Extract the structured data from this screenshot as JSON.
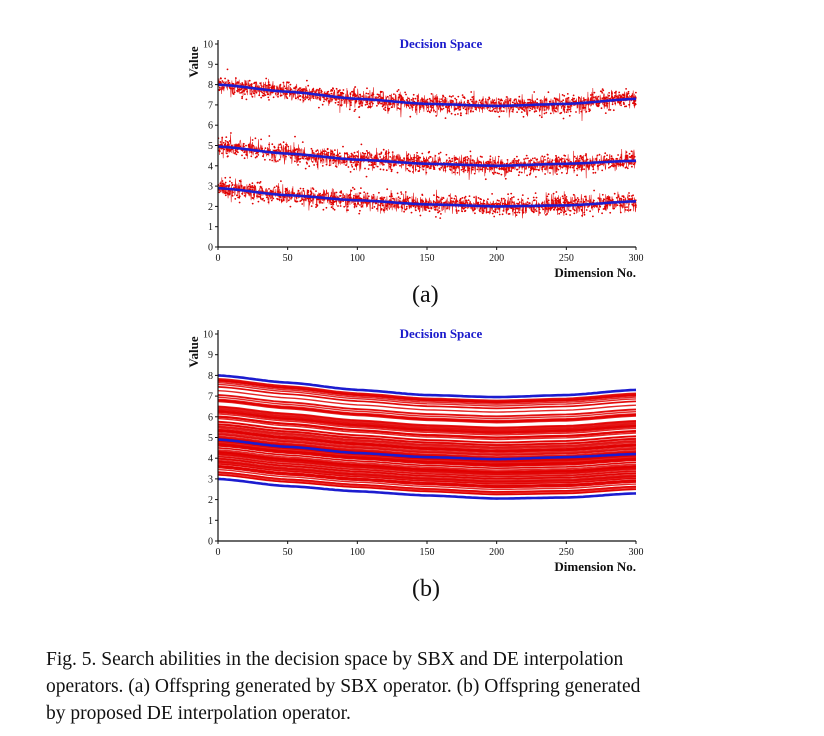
{
  "chart_data": [
    {
      "panel": "(a)",
      "type": "line",
      "title": "Decision Space",
      "xlabel": "Dimension No.",
      "ylabel": "Value",
      "xlim": [
        0,
        300
      ],
      "ylim": [
        0,
        10
      ],
      "xticks": [
        0,
        50,
        100,
        150,
        200,
        250,
        300
      ],
      "yticks": [
        0,
        1,
        2,
        3,
        4,
        5,
        6,
        7,
        8,
        9,
        10
      ],
      "grid": false,
      "legend": "none",
      "style": "noisy offspring scattered around three boundary curves",
      "series": [
        {
          "role": "boundary",
          "x": [
            0,
            50,
            100,
            150,
            200,
            250,
            300
          ],
          "values": [
            8.0,
            7.65,
            7.3,
            7.05,
            6.95,
            7.05,
            7.3
          ]
        },
        {
          "role": "boundary",
          "x": [
            0,
            50,
            100,
            150,
            200,
            250,
            300
          ],
          "values": [
            4.95,
            4.6,
            4.3,
            4.1,
            4.0,
            4.1,
            4.25
          ]
        },
        {
          "role": "boundary",
          "x": [
            0,
            50,
            100,
            150,
            200,
            250,
            300
          ],
          "values": [
            2.9,
            2.55,
            2.3,
            2.1,
            2.0,
            2.05,
            2.25
          ]
        }
      ],
      "offspring_spread": 0.4
    },
    {
      "panel": "(b)",
      "type": "line",
      "title": "Decision Space",
      "xlabel": "Dimension No.",
      "ylabel": "Value",
      "xlim": [
        0,
        300
      ],
      "ylim": [
        0,
        10
      ],
      "xticks": [
        0,
        50,
        100,
        150,
        200,
        250,
        300
      ],
      "yticks": [
        0,
        1,
        2,
        3,
        4,
        5,
        6,
        7,
        8,
        9,
        10
      ],
      "grid": false,
      "legend": "none",
      "style": "offspring curves interpolated between boundary curves",
      "series": [
        {
          "role": "boundary",
          "x": [
            0,
            50,
            100,
            150,
            200,
            250,
            300
          ],
          "values": [
            8.0,
            7.65,
            7.3,
            7.05,
            6.95,
            7.05,
            7.3
          ]
        },
        {
          "role": "boundary",
          "x": [
            0,
            50,
            100,
            150,
            200,
            250,
            300
          ],
          "values": [
            4.9,
            4.55,
            4.25,
            4.05,
            3.95,
            4.05,
            4.2
          ]
        },
        {
          "role": "boundary",
          "x": [
            0,
            50,
            100,
            150,
            200,
            250,
            300
          ],
          "values": [
            3.0,
            2.65,
            2.4,
            2.2,
            2.05,
            2.1,
            2.3
          ]
        }
      ],
      "offspring_count": 110
    }
  ],
  "colors": {
    "boundary": "#1c1ccf",
    "offspring": "#e00000",
    "title": "#1a1acc",
    "axis": "#111111"
  },
  "labels": {
    "panel_a": "(a)",
    "panel_b": "(b)"
  },
  "caption": {
    "line1": "Fig. 5.   Search abilities in the decision space by SBX and DE interpolation",
    "line2": "operators. (a) Offspring generated by SBX operator. (b) Offspring generated",
    "line3": "by proposed DE interpolation operator."
  }
}
